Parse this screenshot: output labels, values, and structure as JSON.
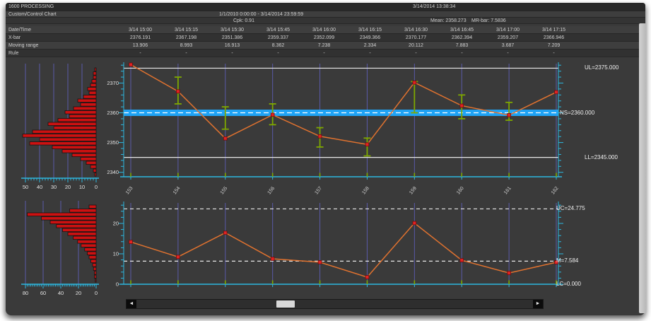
{
  "window": {
    "title": "1600 PROCESSING",
    "timestamp": "3/14/2014 13:38:34"
  },
  "header": {
    "chart_name": "Custom/Control Chart",
    "date_range": "1/1/2010 0:00:00 - 3/14/2014 23:59:59",
    "cpk": "Cpk: 0.91",
    "mean": "Mean: 2358.273",
    "mr_bar": "MR-bar: 7.5836"
  },
  "table": {
    "row_labels": [
      "Date/Time",
      "X-bar",
      "Moving range",
      "Rule"
    ],
    "datetime": [
      "3/14 15:00",
      "3/14 15:15",
      "3/14 15:30",
      "3/14 15:45",
      "3/14 16:00",
      "3/14 16:15",
      "3/14 16:30",
      "3/14 16:45",
      "3/14 17:00",
      "3/14 17:15"
    ],
    "xbar": [
      "2376.191",
      "2367.198",
      "2351.386",
      "2359.337",
      "2352.099",
      "2349.366",
      "2370.177",
      "2362.394",
      "2359.207",
      "2366.946"
    ],
    "moving_range": [
      "13.906",
      "8.993",
      "16.913",
      "8.362",
      "7.238",
      "2.334",
      "20.112",
      "7.883",
      "3.687",
      "7.209"
    ],
    "rule": [
      "-",
      "-",
      "-",
      "-",
      "-",
      "-",
      "-",
      "-",
      "-",
      "-"
    ]
  },
  "chart_data": [
    {
      "id": "xbar_control_chart",
      "type": "line",
      "x_labels": [
        "153",
        "154",
        "155",
        "156",
        "157",
        "158",
        "159",
        "160",
        "161",
        "162"
      ],
      "values": [
        2376.191,
        2367.198,
        2351.386,
        2359.337,
        2352.099,
        2349.366,
        2370.177,
        2362.394,
        2359.207,
        2366.946
      ],
      "whiskers": [
        null,
        [
          2363,
          2372
        ],
        [
          2354.5,
          2362
        ],
        [
          2356,
          2363
        ],
        [
          2348.5,
          2355
        ],
        [
          2345.5,
          2351.5
        ],
        [
          2360,
          2370.5
        ],
        [
          2358,
          2366
        ],
        [
          2357.5,
          2363.5
        ],
        null
      ],
      "ylim": [
        2338.5,
        2377
      ],
      "y_ticks": [
        2340,
        2350,
        2360,
        2370
      ],
      "grid": "vertical",
      "legend": "none",
      "limits": [
        {
          "value": 2375.0,
          "label": "UL=2375.000",
          "style": "solid"
        },
        {
          "value": 2360.0,
          "label": "NS=2360.000",
          "style": "band"
        },
        {
          "value": 2345.0,
          "label": "LL=2345.000",
          "style": "solid"
        }
      ]
    },
    {
      "id": "mr_control_chart",
      "type": "line",
      "x_labels": null,
      "values": [
        13.906,
        8.993,
        16.913,
        8.362,
        7.238,
        2.334,
        20.112,
        7.883,
        3.687,
        7.209
      ],
      "whiskers": null,
      "ylim": [
        0,
        27.2
      ],
      "y_ticks": [
        0,
        10,
        20
      ],
      "grid": "vertical",
      "legend": "none",
      "limits": [
        {
          "value": 24.775,
          "label": "UC=24.775",
          "style": "dashed"
        },
        {
          "value": 7.584,
          "label": "M=7.584",
          "style": "dashed"
        },
        {
          "value": 0.0,
          "label": "LC=0.000",
          "style": "none"
        }
      ]
    },
    {
      "id": "xbar_histogram",
      "type": "bar",
      "orientation": "horizontal-left",
      "values": [
        1,
        2,
        2,
        3,
        4,
        6,
        5,
        9,
        13,
        11,
        16,
        22,
        19,
        27,
        34,
        30,
        45,
        52,
        40,
        47,
        31,
        24,
        17,
        11,
        7,
        4,
        2,
        1
      ],
      "axis_ticks": [
        "50",
        "40",
        "30",
        "20",
        "10",
        "0"
      ],
      "xlim": [
        55,
        0
      ]
    },
    {
      "id": "mr_histogram",
      "type": "bar",
      "orientation": "horizontal-left",
      "values": [
        8,
        30,
        78,
        62,
        52,
        45,
        38,
        32,
        26,
        21,
        17,
        13,
        10,
        8,
        6,
        4,
        3,
        2,
        2,
        1
      ],
      "axis_ticks": [
        "80",
        "60",
        "40",
        "20",
        "0"
      ],
      "xlim": [
        88,
        0
      ]
    }
  ],
  "colors": {
    "accent_cyan": "#2cb8e0",
    "grid_purple": "#5a5aa8",
    "series_orange": "#e0722f",
    "marker_red": "#e32222",
    "whisker_green": "#7ea700",
    "band_blue": "#1fa3f5",
    "bar_red": "#cc1111",
    "limit_white": "#e8e8e8"
  },
  "scrollbar": {
    "left_arrow": "◄",
    "right_arrow": "►"
  }
}
